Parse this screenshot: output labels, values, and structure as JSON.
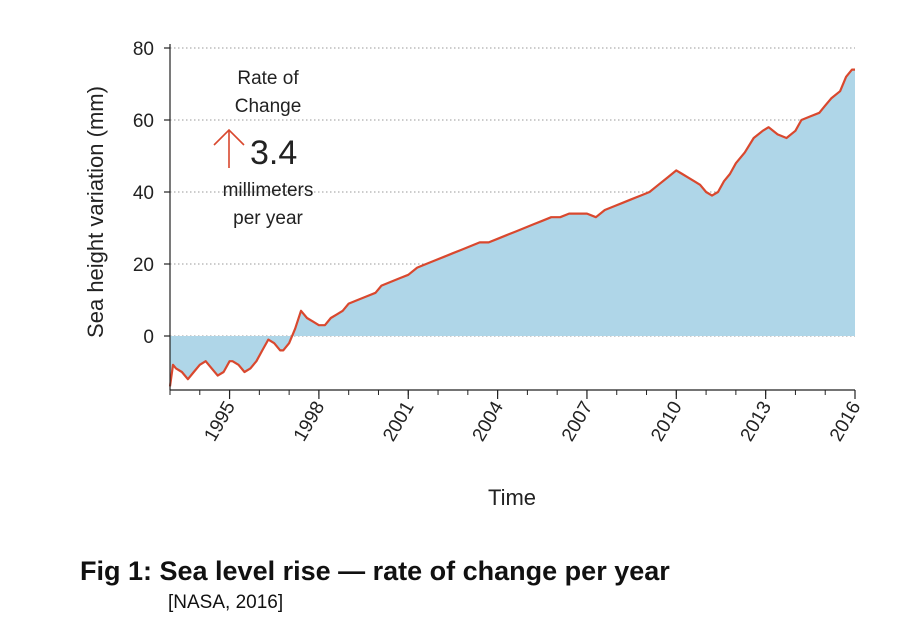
{
  "chart_data": {
    "type": "area",
    "xlabel": "Time",
    "ylabel": "Sea height variation (mm)",
    "xlim": [
      1993.0,
      2016.0
    ],
    "ylim": [
      -15,
      80
    ],
    "x_ticks": [
      1995,
      1998,
      2001,
      2004,
      2007,
      2010,
      2013,
      2016
    ],
    "y_ticks": [
      0,
      20,
      40,
      60,
      80
    ],
    "grid": "horizontal dotted",
    "fill_color": "#afd6e8",
    "line_color": "#d9482e",
    "series": [
      {
        "x": [
          1993.0,
          1993.1,
          1993.2,
          1993.4,
          1993.6,
          1993.8,
          1994.0,
          1994.2,
          1994.4,
          1994.6,
          1994.8,
          1995.0,
          1995.1,
          1995.3,
          1995.5,
          1995.7,
          1995.9,
          1996.1,
          1996.3,
          1996.5,
          1996.7,
          1996.8,
          1997.0,
          1997.2,
          1997.4,
          1997.6,
          1997.8,
          1998.0,
          1998.2,
          1998.4,
          1998.6,
          1998.8,
          1999.0,
          1999.3,
          1999.6,
          1999.9,
          2000.1,
          2000.4,
          2000.7,
          2001.0,
          2001.3,
          2001.6,
          2001.9,
          2002.2,
          2002.5,
          2002.8,
          2003.1,
          2003.4,
          2003.7,
          2004.0,
          2004.3,
          2004.6,
          2004.9,
          2005.2,
          2005.5,
          2005.8,
          2006.1,
          2006.4,
          2006.7,
          2007.0,
          2007.3,
          2007.6,
          2007.9,
          2008.2,
          2008.5,
          2008.8,
          2009.1,
          2009.4,
          2009.7,
          2010.0,
          2010.2,
          2010.4,
          2010.6,
          2010.8,
          2011.0,
          2011.2,
          2011.4,
          2011.6,
          2011.8,
          2012.0,
          2012.3,
          2012.6,
          2012.9,
          2013.1,
          2013.4,
          2013.7,
          2014.0,
          2014.2,
          2014.5,
          2014.8,
          2015.0,
          2015.2,
          2015.5,
          2015.7,
          2015.9,
          2016.0
        ],
        "y": [
          -14,
          -8,
          -9,
          -10,
          -12,
          -10,
          -8,
          -7,
          -9,
          -11,
          -10,
          -7,
          -7,
          -8,
          -10,
          -9,
          -7,
          -4,
          -1,
          -2,
          -4,
          -4,
          -2,
          2,
          7,
          5,
          4,
          3,
          3,
          5,
          6,
          7,
          9,
          10,
          11,
          12,
          14,
          15,
          16,
          17,
          19,
          20,
          21,
          22,
          23,
          24,
          25,
          26,
          26,
          27,
          28,
          29,
          30,
          31,
          32,
          33,
          33,
          34,
          34,
          34,
          33,
          35,
          36,
          37,
          38,
          39,
          40,
          42,
          44,
          46,
          45,
          44,
          43,
          42,
          40,
          39,
          40,
          43,
          45,
          48,
          51,
          55,
          57,
          58,
          56,
          55,
          57,
          60,
          61,
          62,
          64,
          66,
          68,
          72,
          74,
          74
        ]
      }
    ]
  },
  "annotation": {
    "line1": "Rate of",
    "line2": "Change",
    "value": "3.4",
    "unit1": "millimeters",
    "unit2": "per year"
  },
  "caption": {
    "title": "Fig 1: Sea level rise — rate of change per year",
    "source": "[NASA, 2016]"
  }
}
